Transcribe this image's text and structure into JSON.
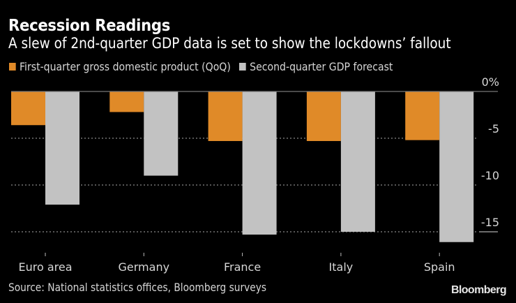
{
  "header": {
    "title": "Recession Readings",
    "subtitle": "A slew of 2nd-quarter GDP data is set to show the lockdowns’ fallout"
  },
  "footer": {
    "source": "Source: National statistics offices, Bloomberg surveys",
    "brand": "Bloomberg"
  },
  "colors": {
    "q1": "#e08a28",
    "q2": "#c2c2c2",
    "background": "#000000"
  },
  "chart_data": {
    "type": "bar",
    "title": "Recession Readings",
    "subtitle": "A slew of 2nd-quarter GDP data is set to show the lockdowns’ fallout",
    "categories": [
      "Euro area",
      "Germany",
      "France",
      "Italy",
      "Spain"
    ],
    "series": [
      {
        "name": "First-quarter gross domestic product (QoQ)",
        "values": [
          -3.6,
          -2.2,
          -5.3,
          -5.3,
          -5.2
        ]
      },
      {
        "name": "Second-quarter GDP forecast",
        "values": [
          -12.1,
          -9.0,
          -15.3,
          -15.0,
          -16.1
        ]
      }
    ],
    "xlabel": "",
    "ylabel": "",
    "ylim": [
      -16.5,
      0
    ],
    "yticks": [
      0,
      -5,
      -10,
      -15
    ],
    "ytick_labels": [
      "0%",
      "-5",
      "-10",
      "-15"
    ],
    "y_axis_position": "right",
    "grid": true,
    "legend_position": "top-left"
  }
}
